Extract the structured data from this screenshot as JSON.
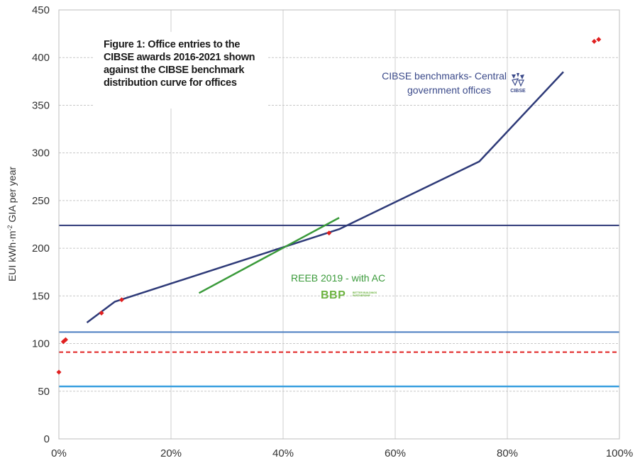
{
  "chart_data": {
    "type": "line",
    "title": "Figure 1: Office entries to the CIBSE awards 2016-2021 shown against the CIBSE benchmark distribution curve for offices",
    "title_lines": [
      "Figure 1: Office entries to the",
      "CIBSE awards 2016-2021 shown",
      "against the CIBSE benchmark",
      "distribution curve for offices"
    ],
    "xlabel": "",
    "ylabel": "EUI kWh·m⁻² GIA per year",
    "ylabel_parts": {
      "main": "EUI kWh·m",
      "sup": "-2",
      "rest": " GIA per year"
    },
    "xlim": [
      0,
      100
    ],
    "ylim": [
      0,
      450
    ],
    "x_ticks": [
      "0%",
      "20%",
      "40%",
      "60%",
      "80%",
      "100%"
    ],
    "x_tick_values": [
      0,
      20,
      40,
      60,
      80,
      100
    ],
    "y_ticks": [
      "0",
      "50",
      "100",
      "150",
      "200",
      "250",
      "300",
      "350",
      "400",
      "450"
    ],
    "y_tick_values": [
      0,
      50,
      100,
      150,
      200,
      250,
      300,
      350,
      400,
      450
    ],
    "grid": {
      "vertical": true,
      "horizontal": true,
      "horizontal_style": "dashed"
    },
    "series": [
      {
        "name": "CIBSE benchmarks- Central government offices",
        "kind": "line",
        "color": "#2e3a78",
        "x": [
          5,
          10,
          50,
          75,
          90
        ],
        "y": [
          122,
          144,
          220,
          291,
          385
        ]
      },
      {
        "name": "REEB 2019 - with AC",
        "kind": "line",
        "color": "#3a9a3a",
        "x": [
          25,
          50
        ],
        "y": [
          153,
          232
        ]
      },
      {
        "name": "",
        "kind": "scatter",
        "color": "#e02020",
        "x": [
          0,
          0.8,
          1.2,
          7.6,
          11.2,
          48.2,
          95.5,
          96.3
        ],
        "y": [
          70,
          102,
          104,
          132,
          146,
          216,
          417,
          419
        ]
      }
    ],
    "reference_lines": [
      {
        "y": 224,
        "color": "#2e3a78",
        "style": "solid",
        "width": 2
      },
      {
        "y": 112,
        "color": "#4a7cc0",
        "style": "solid",
        "width": 2
      },
      {
        "y": 91,
        "color": "#e02020",
        "style": "dashed",
        "width": 2
      },
      {
        "y": 55,
        "color": "#3ba0e0",
        "style": "solid",
        "width": 2.5
      }
    ],
    "annotations": {
      "cibse_line1": "CIBSE benchmarks- Central",
      "cibse_line2": "government offices",
      "reeb": "REEB 2019 - with AC"
    },
    "logos": {
      "bbp_text": "BBP",
      "bbp_small": "BETTER BUILDINGS PARTNERSHIP",
      "cibse_text": "CIBSE"
    }
  }
}
